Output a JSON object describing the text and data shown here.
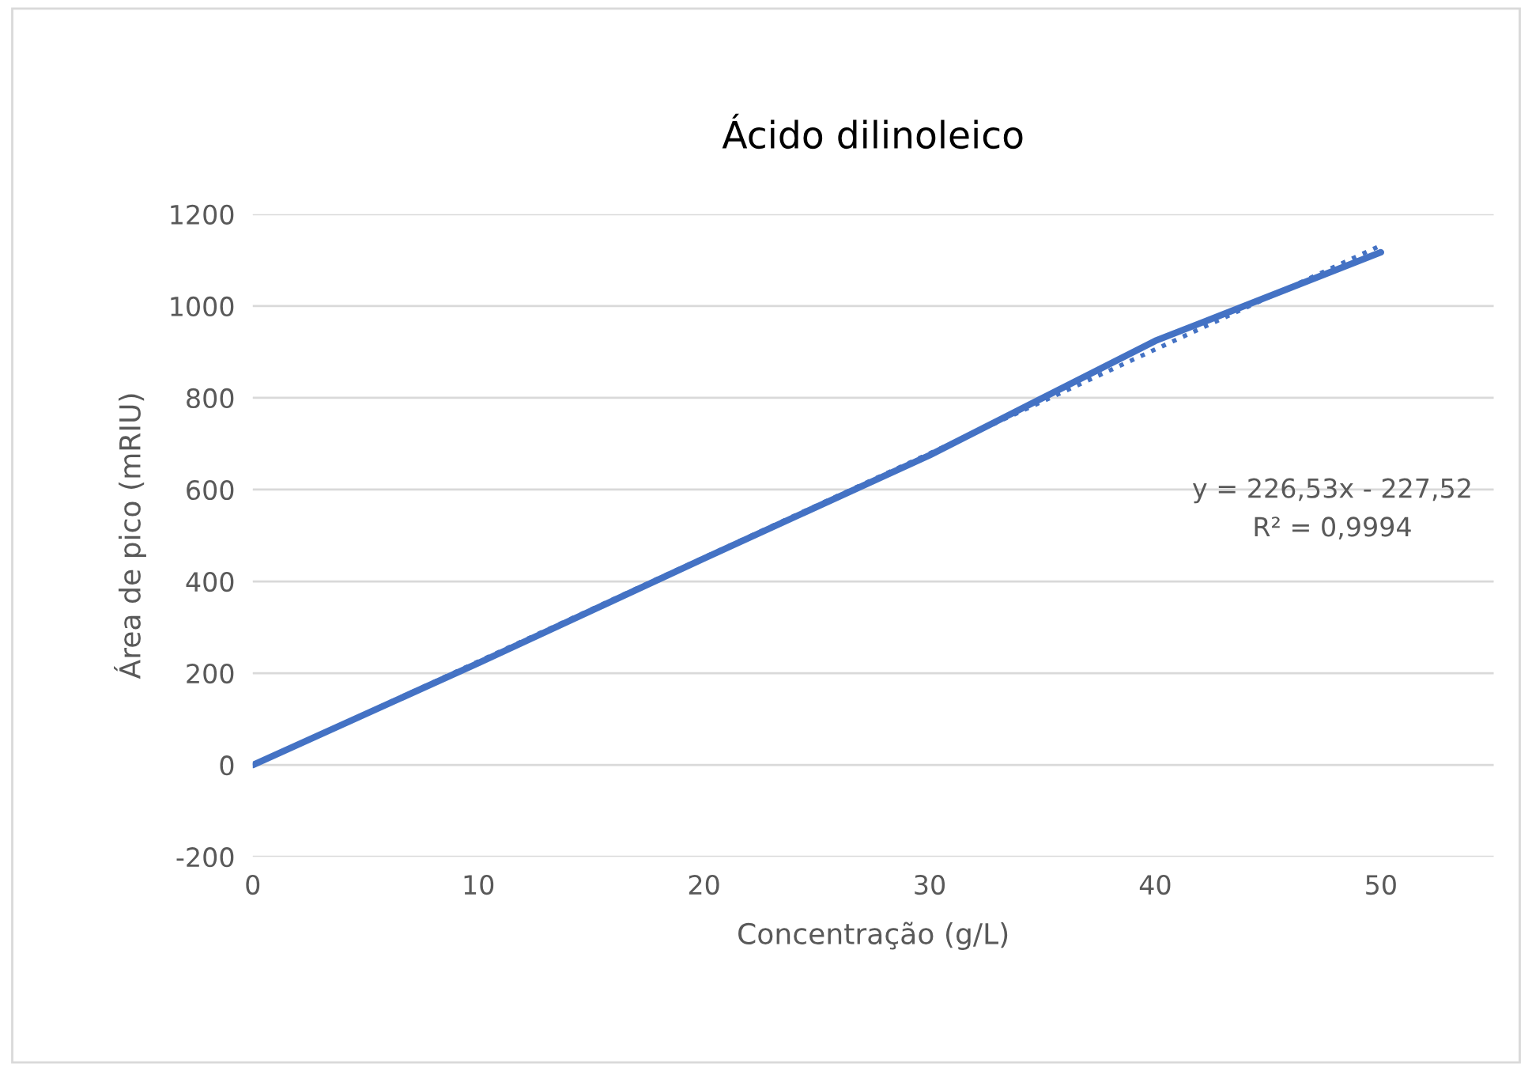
{
  "chart_data": {
    "type": "line",
    "title": "Ácido dilinoleico",
    "xlabel": "Concentração (g/L)",
    "ylabel": "Área de pico (mRIU)",
    "series": [
      {
        "color": "#4472c4",
        "x": [
          0,
          10,
          20,
          30,
          40,
          50
        ],
        "values": [
          0,
          222,
          450,
          675,
          924,
          1117
        ],
        "line_style": "solid"
      },
      {
        "color": "#4472c4",
        "x": [
          0,
          50
        ],
        "values": [
          -1,
          1132
        ],
        "line_style": "dotted"
      }
    ],
    "annotations": [
      "y = 226,53x - 227,52",
      "R² = 0,9994"
    ],
    "xlim": [
      0,
      55
    ],
    "xticks": [
      0,
      10,
      20,
      30,
      40,
      50
    ],
    "ylim": [
      -200,
      1200
    ],
    "yticks": [
      -200,
      0,
      200,
      400,
      600,
      800,
      1000,
      1200
    ],
    "grid": "y",
    "legend": false,
    "marker": "none"
  }
}
